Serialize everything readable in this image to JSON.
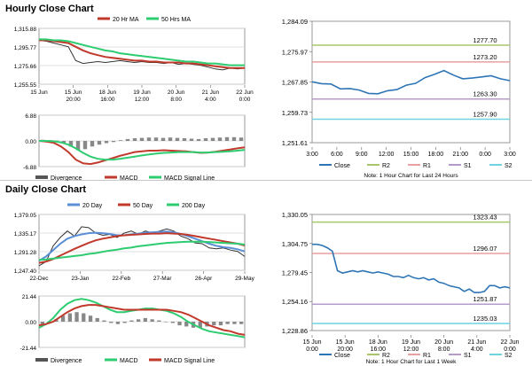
{
  "sections": {
    "hourly_title": "Hourly Close Chart",
    "daily_title": "Daily Close Chart"
  },
  "chart_data": [
    {
      "id": "hourly_price",
      "type": "line",
      "title": "Hourly Close Chart",
      "legend": [
        "20 Hr MA",
        "50 Hrs MA"
      ],
      "series_colors": [
        "#c0392b",
        "#2ecc71"
      ],
      "yticks": [
        "1,315.88",
        "1,295.77",
        "1,275.66",
        "1,255.55"
      ],
      "ylim": [
        1255.55,
        1315.88
      ],
      "xticks": [
        [
          "15 Jun",
          "15 Jun",
          "18 Jun",
          "19 Jun",
          "20 Jun",
          "21 Jun",
          "22 Jun"
        ],
        [
          "",
          "20:00",
          "16:00",
          "12:00",
          "8:00",
          "4:00",
          "0:00"
        ]
      ],
      "series": [
        {
          "name": "Close",
          "values": [
            1303,
            1302,
            1300,
            1298,
            1296,
            1281,
            1278,
            1279,
            1280,
            1279,
            1280,
            1281,
            1280,
            1279,
            1280,
            1279,
            1279,
            1278,
            1279,
            1277,
            1278,
            1277,
            1276,
            1274,
            1272,
            1271,
            1273,
            1272,
            1273
          ]
        },
        {
          "name": "20 Hr MA",
          "values": [
            1303,
            1303,
            1302,
            1301,
            1300,
            1296,
            1292,
            1289,
            1287,
            1285,
            1284,
            1283,
            1282,
            1281,
            1281,
            1280,
            1280,
            1279,
            1279,
            1279,
            1278,
            1278,
            1277,
            1276,
            1275,
            1274,
            1273,
            1273,
            1273
          ]
        },
        {
          "name": "50 Hrs MA",
          "values": [
            1304,
            1304,
            1303,
            1303,
            1302,
            1300,
            1298,
            1296,
            1294,
            1292,
            1291,
            1289,
            1288,
            1287,
            1286,
            1285,
            1284,
            1283,
            1282,
            1281,
            1280,
            1280,
            1279,
            1278,
            1278,
            1277,
            1276,
            1276,
            1276
          ]
        }
      ]
    },
    {
      "id": "hourly_macd",
      "type": "bar",
      "yticks": [
        "6.88",
        "0.00",
        "-6.88"
      ],
      "ylim": [
        -6.88,
        6.88
      ],
      "legend": [
        "Divergence",
        "MACD",
        "MACD Signal Line"
      ],
      "series_colors": [
        "#555555",
        "#c0392b",
        "#2ecc71"
      ],
      "series": [
        {
          "name": "Divergence",
          "values": [
            0.3,
            0.2,
            0.1,
            -0.5,
            -1.5,
            -2.5,
            -2.2,
            -1.5,
            -1,
            -0.6,
            -0.3,
            0.2,
            0.5,
            0.7,
            0.8,
            0.9,
            0.9,
            0.8,
            0.9,
            0.8,
            0.7,
            0.6,
            0.5,
            0.7,
            0.8,
            0.9,
            1,
            1,
            0.9
          ]
        },
        {
          "name": "MACD",
          "values": [
            0,
            -0.2,
            -0.5,
            -1.5,
            -3,
            -5,
            -6,
            -6.2,
            -5.8,
            -5.2,
            -4.6,
            -4,
            -3.5,
            -3,
            -2.8,
            -2.6,
            -2.6,
            -2.5,
            -2.6,
            -2.7,
            -2.8,
            -3,
            -3.2,
            -3.1,
            -2.9,
            -2.6,
            -2.3,
            -2,
            -1.7
          ]
        },
        {
          "name": "MACD Signal Line",
          "values": [
            0,
            0,
            -0.1,
            -0.4,
            -1,
            -2,
            -3.2,
            -4.2,
            -4.8,
            -5,
            -5,
            -4.8,
            -4.5,
            -4.2,
            -3.9,
            -3.6,
            -3.4,
            -3.2,
            -3.1,
            -3,
            -3,
            -3,
            -3.1,
            -3.1,
            -3,
            -2.9,
            -2.8,
            -2.6,
            -2.4
          ]
        }
      ]
    },
    {
      "id": "hourly_pivot",
      "type": "line",
      "yticks": [
        "1,284.09",
        "1,275.97",
        "1,267.85",
        "1,259.73",
        "1,251.61"
      ],
      "ylim": [
        1251.61,
        1284.09
      ],
      "xticks": [
        "3:00",
        "6:00",
        "9:00",
        "12:00",
        "15:00",
        "18:00",
        "21:00",
        "0:00",
        "3:00"
      ],
      "levels": [
        {
          "name": "R2",
          "value": 1277.7,
          "label": "1277.70",
          "color": "#a8c66c"
        },
        {
          "name": "R1",
          "value": 1273.2,
          "label": "1273.20",
          "color": "#e8a0a0"
        },
        {
          "name": "S1",
          "value": 1263.3,
          "label": "1263.30",
          "color": "#b59bc9"
        },
        {
          "name": "S2",
          "value": 1257.9,
          "label": "1257.90",
          "color": "#6fd3e0"
        }
      ],
      "series": [
        {
          "name": "Close",
          "values": [
            1267.9,
            1267.4,
            1267.3,
            1266.0,
            1266.1,
            1265.7,
            1264.8,
            1264.7,
            1265.5,
            1265.8,
            1267.0,
            1267.5,
            1269.0,
            1269.9,
            1270.9,
            1269.7,
            1268.7,
            1268.9,
            1269.2,
            1269.5,
            1268.7,
            1268.2
          ]
        }
      ],
      "legend": [
        "Close",
        "R2",
        "R1",
        "S1",
        "S2"
      ],
      "note": "Note: 1 Hour Chart for Last 24 Hours"
    },
    {
      "id": "daily_price",
      "type": "line",
      "title": "Daily Close Chart",
      "legend": [
        "20 Day",
        "50 Day",
        "200 Day"
      ],
      "series_colors": [
        "#5b8fd6",
        "#c0392b",
        "#2ecc71"
      ],
      "yticks": [
        "1,379.05",
        "1,335.17",
        "1,291.28",
        "1,247.40"
      ],
      "ylim": [
        1247.4,
        1379.05
      ],
      "xticks": [
        "22-Dec",
        "23-Jan",
        "22-Feb",
        "27-Mar",
        "26-Apr",
        "29-May"
      ],
      "series": [
        {
          "name": "Close",
          "values": [
            1258,
            1268,
            1305,
            1325,
            1340,
            1328,
            1350,
            1348,
            1335,
            1330,
            1332,
            1325,
            1335,
            1340,
            1332,
            1340,
            1335,
            1340,
            1345,
            1340,
            1328,
            1322,
            1312,
            1310,
            1300,
            1298,
            1300,
            1295,
            1292,
            1280
          ]
        },
        {
          "name": "20 Day",
          "values": [
            1270,
            1280,
            1295,
            1310,
            1322,
            1328,
            1332,
            1335,
            1336,
            1335,
            1333,
            1330,
            1330,
            1332,
            1334,
            1336,
            1337,
            1338,
            1339,
            1337,
            1333,
            1328,
            1322,
            1316,
            1310,
            1305,
            1302,
            1300,
            1297,
            1292
          ]
        },
        {
          "name": "50 Day",
          "values": [
            1265,
            1268,
            1274,
            1282,
            1290,
            1298,
            1305,
            1312,
            1318,
            1322,
            1325,
            1328,
            1330,
            1331,
            1332,
            1333,
            1334,
            1334,
            1335,
            1334,
            1333,
            1331,
            1328,
            1325,
            1322,
            1319,
            1316,
            1313,
            1310,
            1306
          ]
        },
        {
          "name": "200 Day",
          "values": [
            1272,
            1273,
            1275,
            1277,
            1279,
            1281,
            1283,
            1286,
            1288,
            1291,
            1294,
            1296,
            1299,
            1301,
            1304,
            1306,
            1308,
            1310,
            1312,
            1313,
            1314,
            1315,
            1315,
            1315,
            1314,
            1313,
            1312,
            1311,
            1310,
            1308
          ]
        }
      ]
    },
    {
      "id": "daily_macd",
      "type": "bar",
      "yticks": [
        "21.44",
        "0.00",
        "-21.44"
      ],
      "ylim": [
        -21.44,
        21.44
      ],
      "legend": [
        "Divergence",
        "MACD",
        "MACD Signal Line"
      ],
      "series_colors": [
        "#555555",
        "#2ecc71",
        "#c0392b"
      ],
      "series": [
        {
          "name": "Divergence",
          "values": [
            -2,
            -1,
            2,
            5,
            7,
            8,
            7,
            5,
            3,
            1,
            -1,
            -2,
            -1,
            1,
            2,
            3,
            2,
            1,
            0,
            -1,
            -3,
            -4,
            -5,
            -5,
            -4,
            -3,
            -3,
            -2,
            -2,
            -2
          ]
        },
        {
          "name": "MACD",
          "values": [
            -5,
            -2,
            3,
            10,
            15,
            18,
            19,
            18,
            16,
            13,
            10,
            8,
            8,
            9,
            10,
            11,
            11,
            10,
            9,
            7,
            4,
            0,
            -3,
            -6,
            -8,
            -9,
            -10,
            -11,
            -12,
            -13
          ]
        },
        {
          "name": "MACD Signal Line",
          "values": [
            -3,
            -2,
            0,
            4,
            8,
            11,
            13,
            14,
            14,
            13,
            12,
            11,
            10,
            10,
            10,
            10,
            10,
            10,
            10,
            9,
            8,
            6,
            3,
            0,
            -3,
            -5,
            -7,
            -8,
            -10,
            -11
          ]
        }
      ]
    },
    {
      "id": "daily_pivot",
      "type": "line",
      "yticks": [
        "1,330.05",
        "1,304.75",
        "1,279.45",
        "1,254.16",
        "1,228.86"
      ],
      "ylim": [
        1228.86,
        1330.05
      ],
      "xticks": [
        [
          "15 Jun",
          "15 Jun",
          "18 Jun",
          "19 Jun",
          "20 Jun",
          "21 Jun",
          "22 Jun"
        ],
        [
          "0:00",
          "20:00",
          "16:00",
          "12:00",
          "8:00",
          "4:00",
          "0:00"
        ]
      ],
      "levels": [
        {
          "name": "R2",
          "value": 1323.43,
          "label": "1323.43",
          "color": "#a8c66c"
        },
        {
          "name": "R1",
          "value": 1296.07,
          "label": "1296.07",
          "color": "#e8a0a0"
        },
        {
          "name": "S1",
          "value": 1251.87,
          "label": "1251.87",
          "color": "#b59bc9"
        },
        {
          "name": "S2",
          "value": 1235.03,
          "label": "1235.03",
          "color": "#6fd3e0"
        }
      ],
      "series": [
        {
          "name": "Close",
          "values": [
            1304,
            1304,
            1303,
            1301,
            1298,
            1281,
            1279,
            1280,
            1281,
            1280,
            1281,
            1280,
            1279,
            1280,
            1279,
            1278,
            1276,
            1276,
            1275,
            1277,
            1275,
            1274,
            1275,
            1273,
            1274,
            1271,
            1270,
            1268,
            1267,
            1266,
            1263,
            1265,
            1262,
            1262,
            1263,
            1268,
            1268,
            1266,
            1267,
            1266
          ]
        }
      ],
      "legend": [
        "Close",
        "R2",
        "R1",
        "S1",
        "S2"
      ],
      "note": "Note: 1 Hour Chart for Last 1 Week"
    }
  ]
}
